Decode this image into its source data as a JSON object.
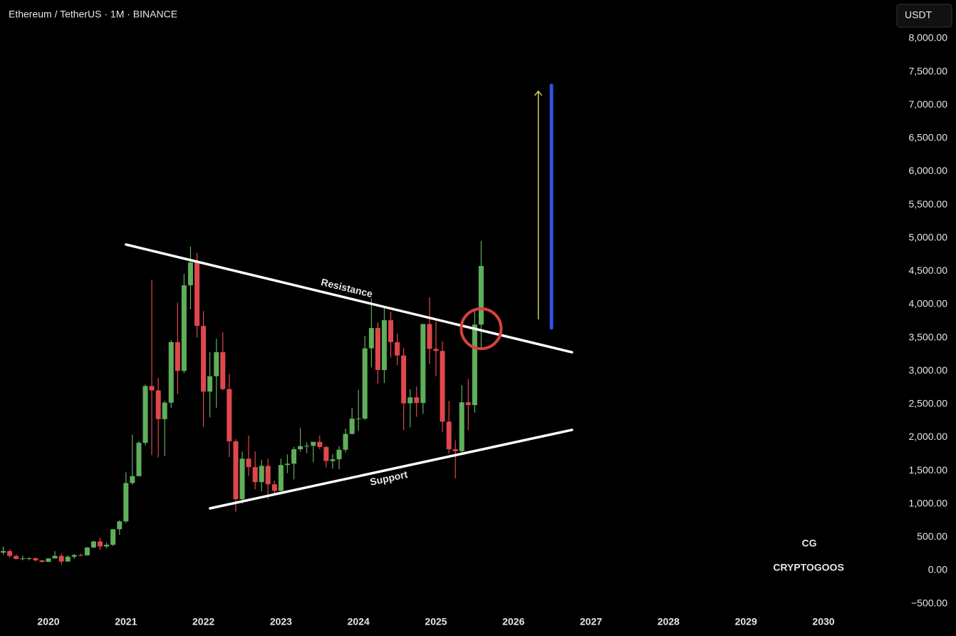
{
  "chart_data": {
    "type": "candlestick",
    "title": "Ethereum / TetherUS · 1M · BINANCE",
    "currency": "USDT",
    "up_color": "#5fae5a",
    "down_color": "#e0474c",
    "xlim": [
      2019.375,
      2030.864
    ],
    "xticks": [
      2020,
      2021,
      2022,
      2023,
      2024,
      2025,
      2026,
      2027,
      2028,
      2029,
      2030
    ],
    "ylim": [
      -590,
      8579
    ],
    "yticks": [
      {
        "value": -500,
        "label": "−500.00"
      },
      {
        "value": 0,
        "label": "0.00"
      },
      {
        "value": 500,
        "label": "500.00"
      },
      {
        "value": 1000,
        "label": "1,000.00"
      },
      {
        "value": 1500,
        "label": "1,500.00"
      },
      {
        "value": 2000,
        "label": "2,000.00"
      },
      {
        "value": 2500,
        "label": "2,500.00"
      },
      {
        "value": 3000,
        "label": "3,000.00"
      },
      {
        "value": 3500,
        "label": "3,500.00"
      },
      {
        "value": 4000,
        "label": "4,000.00"
      },
      {
        "value": 4500,
        "label": "4,500.00"
      },
      {
        "value": 5000,
        "label": "5,000.00"
      },
      {
        "value": 5500,
        "label": "5,500.00"
      },
      {
        "value": 6000,
        "label": "6,000.00"
      },
      {
        "value": 6500,
        "label": "6,500.00"
      },
      {
        "value": 7000,
        "label": "7,000.00"
      },
      {
        "value": 7500,
        "label": "7,500.00"
      },
      {
        "value": 8000,
        "label": "8,000.00"
      }
    ],
    "x": [
      2019.417,
      2019.5,
      2019.583,
      2019.667,
      2019.75,
      2019.833,
      2019.917,
      2020,
      2020.083,
      2020.167,
      2020.25,
      2020.333,
      2020.417,
      2020.5,
      2020.583,
      2020.667,
      2020.75,
      2020.833,
      2020.917,
      2021,
      2021.083,
      2021.167,
      2021.25,
      2021.333,
      2021.417,
      2021.5,
      2021.583,
      2021.667,
      2021.75,
      2021.833,
      2021.917,
      2022,
      2022.083,
      2022.167,
      2022.25,
      2022.333,
      2022.417,
      2022.5,
      2022.583,
      2022.667,
      2022.75,
      2022.833,
      2022.917,
      2023,
      2023.083,
      2023.167,
      2023.25,
      2023.333,
      2023.417,
      2023.5,
      2023.583,
      2023.667,
      2023.75,
      2023.833,
      2023.917,
      2024,
      2024.083,
      2024.167,
      2024.25,
      2024.333,
      2024.417,
      2024.5,
      2024.583,
      2024.667,
      2024.75,
      2024.833,
      2024.917,
      2025,
      2025.083,
      2025.167,
      2025.25,
      2025.333,
      2025.417,
      2025.5,
      2025.583
    ],
    "open": [
      268,
      291,
      218,
      172,
      180,
      183,
      152,
      129,
      180,
      218,
      133,
      206,
      231,
      226,
      345,
      435,
      360,
      386,
      619,
      737,
      1314,
      1417,
      1919,
      2773,
      2707,
      2275,
      2523,
      3433,
      3000,
      4288,
      4631,
      3677,
      2689,
      2920,
      3282,
      2727,
      1941,
      1070,
      1680,
      1553,
      1328,
      1572,
      1295,
      1196,
      1585,
      1605,
      1822,
      1869,
      1874,
      1934,
      1856,
      1645,
      1671,
      1815,
      2052,
      2282,
      2283,
      3340,
      3645,
      3014,
      3763,
      3433,
      3232,
      2513,
      2603,
      2518,
      3706,
      3332,
      3300,
      2237,
      1822,
      1793,
      2528,
      2486,
      3697
    ],
    "high": [
      361,
      319,
      239,
      224,
      198,
      195,
      154,
      185,
      288,
      253,
      227,
      247,
      253,
      349,
      446,
      489,
      420,
      623,
      756,
      1475,
      2041,
      1943,
      2797,
      4372,
      2893,
      2551,
      3464,
      4027,
      4460,
      4869,
      4778,
      3900,
      3283,
      3483,
      3580,
      2954,
      1973,
      1786,
      2030,
      1790,
      1665,
      1680,
      1352,
      1680,
      1744,
      1857,
      2141,
      1927,
      1930,
      2029,
      1875,
      1750,
      1867,
      2133,
      2445,
      2717,
      3523,
      4093,
      3731,
      3977,
      3887,
      3563,
      3348,
      2728,
      2766,
      3682,
      4107,
      3745,
      3444,
      2550,
      1956,
      2788,
      2880,
      3941,
      4956
    ],
    "low": [
      232,
      191,
      163,
      153,
      151,
      135,
      117,
      126,
      179,
      86,
      130,
      176,
      214,
      223,
      335,
      308,
      334,
      367,
      535,
      714,
      1290,
      1440,
      1881,
      1734,
      1700,
      1719,
      2443,
      2651,
      2970,
      3926,
      3502,
      2160,
      2300,
      2447,
      2713,
      1703,
      881,
      1003,
      1422,
      1220,
      1190,
      1073,
      1150,
      1190,
      1461,
      1368,
      1785,
      1761,
      1626,
      1825,
      1550,
      1531,
      1521,
      1775,
      2046,
      2101,
      2262,
      3056,
      2811,
      2817,
      3200,
      3087,
      2111,
      2150,
      2310,
      2357,
      3100,
      2920,
      2076,
      1754,
      1385,
      1749,
      2111,
      2373,
      3324
    ],
    "close": [
      291,
      218,
      172,
      180,
      183,
      152,
      129,
      180,
      218,
      133,
      206,
      231,
      226,
      345,
      435,
      360,
      386,
      619,
      737,
      1314,
      1417,
      1919,
      2773,
      2707,
      2275,
      2523,
      3433,
      3000,
      4288,
      4631,
      3677,
      2689,
      2920,
      3282,
      2727,
      1941,
      1070,
      1680,
      1553,
      1328,
      1572,
      1295,
      1196,
      1585,
      1605,
      1822,
      1869,
      1874,
      1934,
      1856,
      1645,
      1671,
      1815,
      2052,
      2282,
      2283,
      3340,
      3645,
      3014,
      3763,
      3433,
      3232,
      2513,
      2603,
      2518,
      3706,
      3332,
      3300,
      2237,
      1822,
      1793,
      2528,
      2486,
      3697,
      4579
    ],
    "trendlines": [
      {
        "label": "Resistance",
        "x": [
          2021.0,
          2026.755
        ],
        "y": [
          4901,
          3281
        ]
      },
      {
        "label": "Support",
        "x": [
          2022.085,
          2026.755
        ],
        "y": [
          933,
          2113
        ]
      }
    ],
    "breakout_circle": {
      "x": 2025.583,
      "y": 3635
    },
    "target_arrow": {
      "x": 2026.32,
      "y": [
        3775,
        7207
      ]
    },
    "target_bar": {
      "x": 2026.49,
      "y": [
        3647,
        7293
      ]
    },
    "logo": {
      "mark": "CG",
      "name": "CRYPTOGOOS"
    }
  }
}
